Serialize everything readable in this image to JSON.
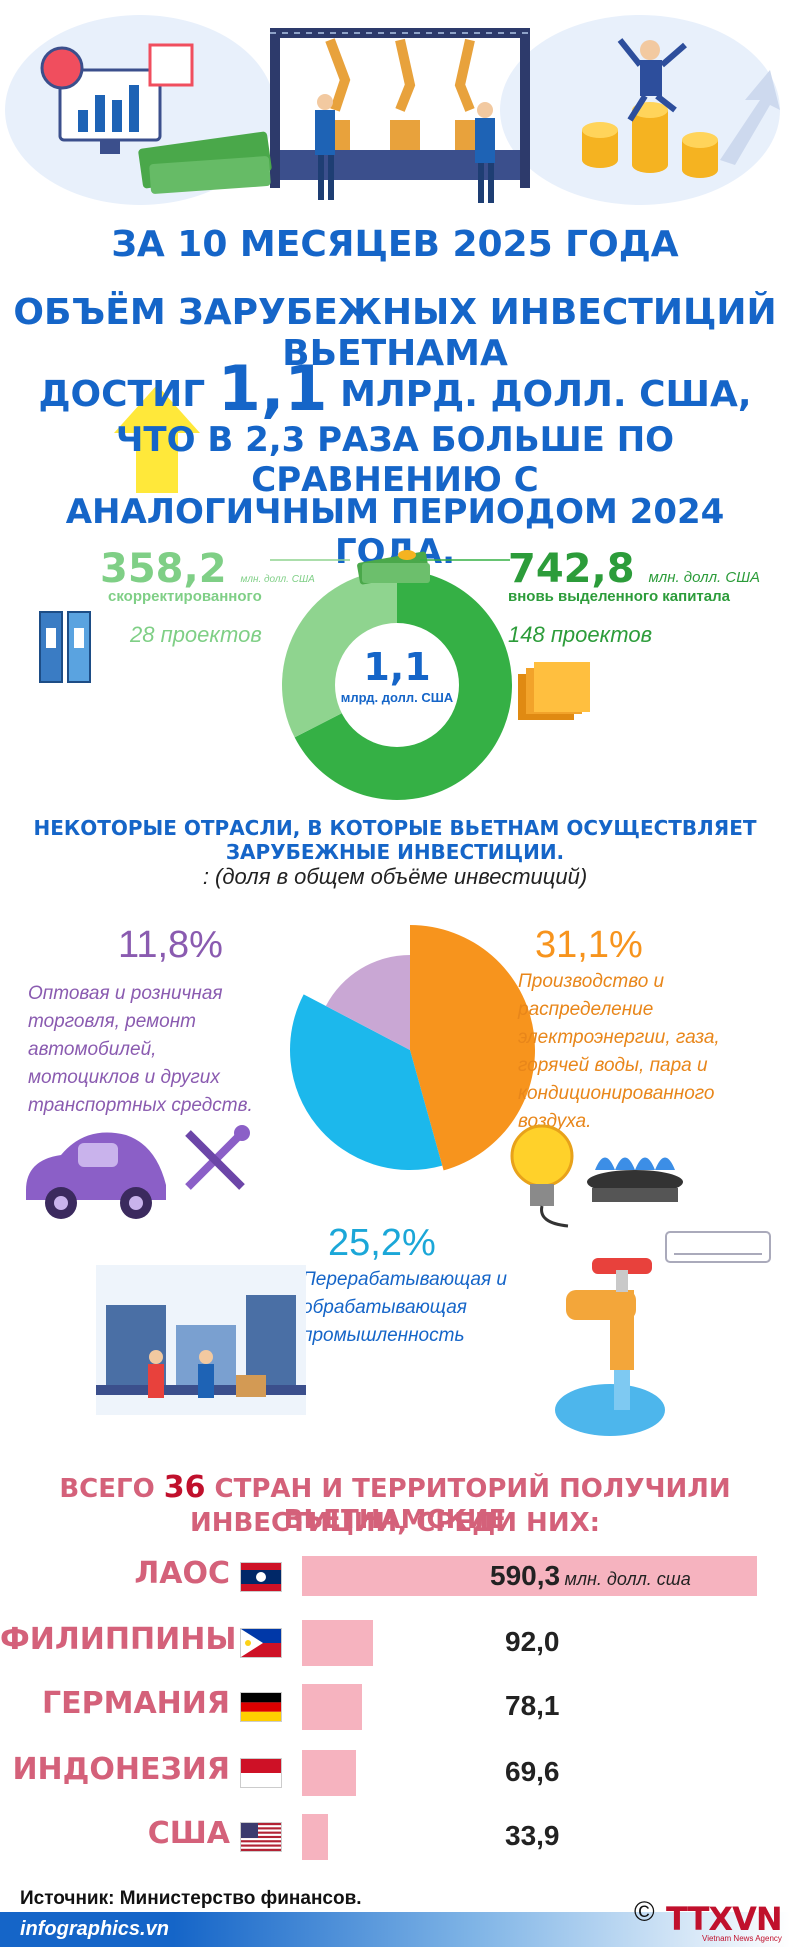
{
  "header": {
    "line1": "ЗА 10 МЕСЯЦЕВ 2025 ГОДА",
    "line2": "ОБЪЁМ ЗАРУБЕЖНЫХ ИНВЕСТИЦИЙ ВЬЕТНАМА",
    "line3_pre": "ДОСТИГ ",
    "line3_big": "1,1",
    "line3_post": " МЛРД. ДОЛЛ. США,",
    "line4": "ЧТО В 2,3 РАЗА БОЛЬШЕ ПО СРАВНЕНИЮ С",
    "line5": "АНАЛОГИЧНЫМ ПЕРИОДОМ 2024 ГОДА."
  },
  "colors": {
    "title_blue": "#1565c8",
    "donut_light_green": "#8fd48f",
    "donut_dark_green": "#35b045",
    "pie_orange": "#f7941d",
    "pie_blue": "#1cb8ec",
    "pie_purple": "#c9a7d4",
    "bar_pink": "#f6b3bf",
    "country_pink": "#d4617a"
  },
  "donut": {
    "left_value": "358,2",
    "left_unit": "млн. долл. США",
    "left_label": "скорректированного",
    "left_projects": "28 проектов",
    "right_value": "742,8",
    "right_unit": "млн. долл. США",
    "right_label": "вновь выделенного капитала",
    "right_projects": "148 проектов",
    "center_value": "1,1",
    "center_unit": "млрд. долл. США"
  },
  "sectors": {
    "heading": "НЕКОТОРЫЕ ОТРАСЛИ, В КОТОРЫЕ ВЬЕТНАМ ОСУЩЕСТВЛЯЕТ ЗАРУБЕЖНЫЕ ИНВЕСТИЦИИ.",
    "subheading": ": (доля в общем объёме инвестиций)",
    "trade_pct": "11,8%",
    "trade_text": "Оптовая и розничная торговля, ремонт автомобилей, мотоциклов и других транспортных средств.",
    "energy_pct": "31,1%",
    "energy_text": "Производство и распределение электроэнергии, газа, горячей воды, пара и кондиционированного воздуха.",
    "manuf_pct": "25,2%",
    "manuf_text": "Перерабатывающая и обрабатывающая промышленность"
  },
  "countries": {
    "heading_pre": "ВСЕГО ",
    "heading_num": "36",
    "heading_post": " СТРАН И ТЕРРИТОРИЙ ПОЛУЧИЛИ ВЬЕТНАМСКИЕ",
    "heading_line2": "ИНВЕСТИЦИИ, СРЕДИ НИХ:",
    "unit": "млн. долл. сша",
    "items": [
      {
        "name": "ЛАОС",
        "value": "590,3"
      },
      {
        "name": "ФИЛИППИНЫ",
        "value": "92,0"
      },
      {
        "name": "ГЕРМАНИЯ",
        "value": "78,1"
      },
      {
        "name": "ИНДОНЕЗИЯ",
        "value": "69,6"
      },
      {
        "name": "США",
        "value": "33,9"
      }
    ]
  },
  "footer": {
    "source": "Источник: Министерство финансов.",
    "site": "infographics.vn",
    "brand": "TTXVN",
    "brand_sub": "Vietnam News Agency",
    "copyright": "©"
  },
  "chart_data": [
    {
      "type": "pie",
      "title": "",
      "categories": [
        "скорректированного",
        "вновь выделенного капитала"
      ],
      "values": [
        358.2,
        742.8
      ],
      "unit": "млн. долл. США"
    },
    {
      "type": "pie",
      "title": "",
      "categories": [
        "Производство и распределение электроэнергии, газа, горячей воды, пара и кондиционированного воздуха.",
        "Перерабатывающая и обрабатывающая промышленность",
        "Оптовая и розничная торговля, ремонт автомобилей, мотоциклов и других транспортных средств."
      ],
      "values": [
        31.1,
        25.2,
        11.8
      ],
      "unit": "%"
    },
    {
      "type": "bar",
      "title": "",
      "categories": [
        "ЛАОС",
        "ФИЛИППИНЫ",
        "ГЕРМАНИЯ",
        "ИНДОНЕЗИЯ",
        "США"
      ],
      "values": [
        590.3,
        92.0,
        78.1,
        69.6,
        33.9
      ],
      "unit": "млн. долл. сша"
    }
  ]
}
